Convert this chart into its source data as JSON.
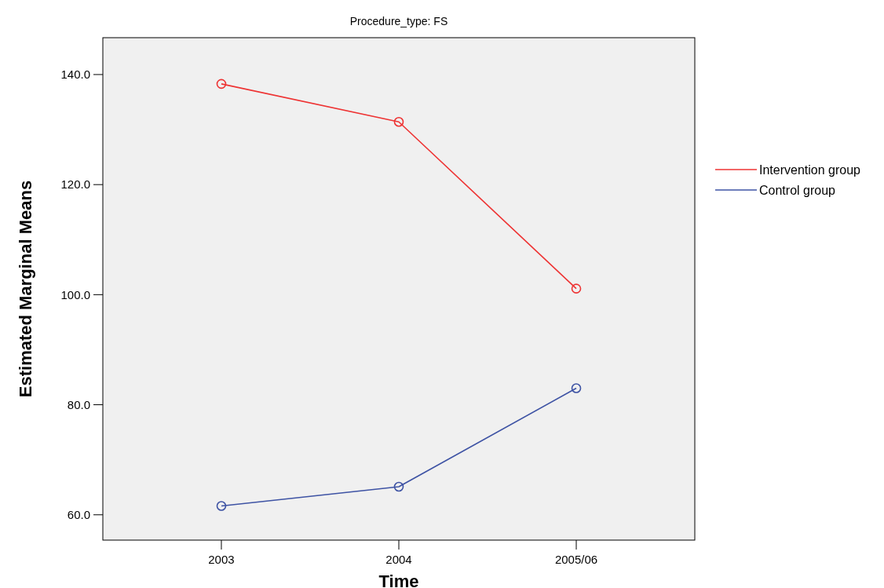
{
  "chart_data": {
    "type": "line",
    "title": "Procedure_type: FS",
    "xlabel": "Time",
    "ylabel": "Estimated Marginal Means",
    "categories": [
      "2003",
      "2004",
      "2005/06"
    ],
    "series": [
      {
        "name": "Intervention group",
        "color": "#ee3333",
        "values": [
          138.3,
          131.4,
          101.1
        ]
      },
      {
        "name": "Control group",
        "color": "#3e53a4",
        "values": [
          61.6,
          65.1,
          83.0
        ]
      }
    ],
    "ylim": [
      55.4,
      146.7
    ],
    "yticks": [
      {
        "value": 60,
        "label": "60.0"
      },
      {
        "value": 80,
        "label": "80.0"
      },
      {
        "value": 100,
        "label": "100.0"
      },
      {
        "value": 120,
        "label": "120.0"
      },
      {
        "value": 140,
        "label": "140.0"
      }
    ],
    "grid": false,
    "legend": "right",
    "marker": "circle",
    "line_style": "solid"
  }
}
